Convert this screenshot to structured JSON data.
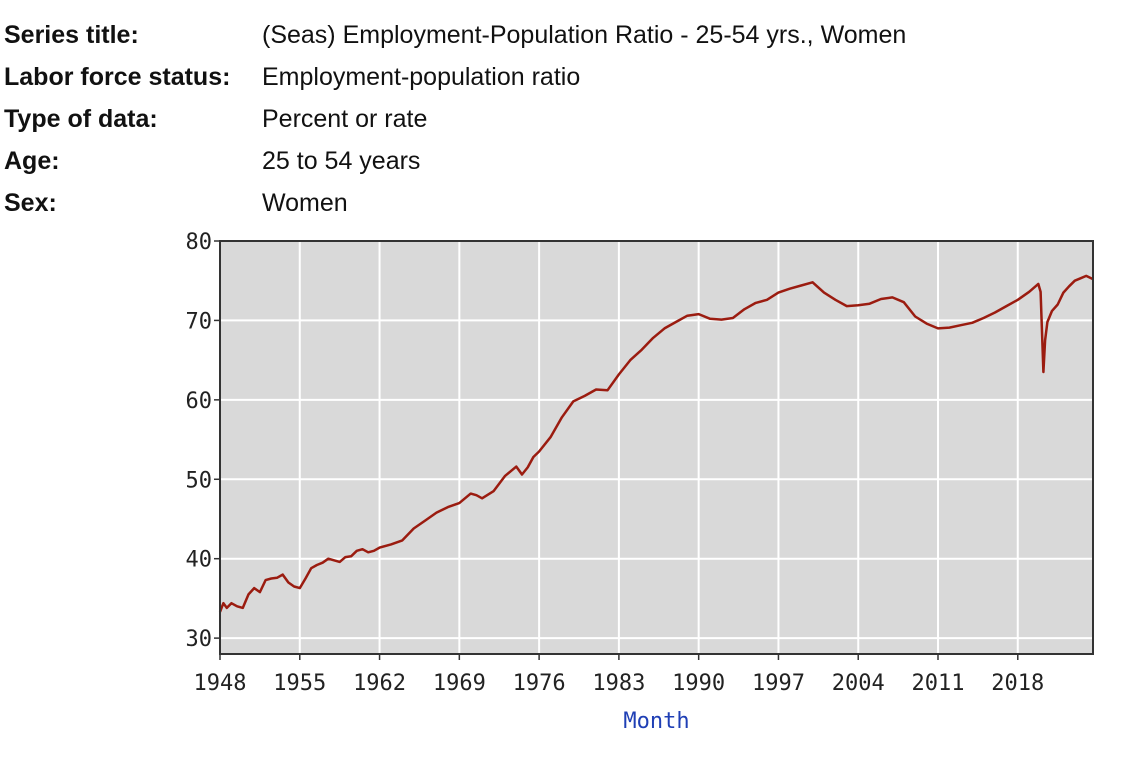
{
  "metadata": [
    {
      "label": "Series title:",
      "value": "(Seas) Employment-Population Ratio - 25-54 yrs., Women"
    },
    {
      "label": "Labor force status:",
      "value": "Employment-population ratio"
    },
    {
      "label": "Type of data:",
      "value": "Percent or rate"
    },
    {
      "label": "Age:",
      "value": "25 to 54 years"
    },
    {
      "label": "Sex:",
      "value": "Women"
    }
  ],
  "colors": {
    "line": "#9b1c10",
    "plot_bg": "#d9d9d9",
    "grid": "#ffffff",
    "axis_label": "#1f3fb5"
  },
  "chart_data": {
    "type": "line",
    "title": "",
    "xlabel": "Month",
    "ylabel": "",
    "xlim": [
      1948,
      2024.6
    ],
    "ylim": [
      28,
      80
    ],
    "grid": true,
    "legend": "none",
    "x_ticks": [
      1948,
      1955,
      1962,
      1969,
      1976,
      1983,
      1990,
      1997,
      2004,
      2011,
      2018
    ],
    "y_ticks": [
      30,
      40,
      50,
      60,
      70,
      80
    ],
    "series": [
      {
        "x": [
          1948.0,
          1948.3,
          1948.6,
          1949.0,
          1949.5,
          1950.0,
          1950.5,
          1951.0,
          1951.5,
          1952.0,
          1952.5,
          1953.0,
          1953.5,
          1954.0,
          1954.5,
          1955.0,
          1955.5,
          1956.0,
          1956.5,
          1957.0,
          1957.5,
          1958.0,
          1958.5,
          1959.0,
          1959.5,
          1960.0,
          1960.5,
          1961.0,
          1961.5,
          1962.0,
          1963.0,
          1964.0,
          1965.0,
          1966.0,
          1967.0,
          1968.0,
          1969.0,
          1970.0,
          1970.5,
          1971.0,
          1972.0,
          1973.0,
          1974.0,
          1974.5,
          1975.0,
          1975.5,
          1976.0,
          1977.0,
          1978.0,
          1979.0,
          1980.0,
          1981.0,
          1982.0,
          1983.0,
          1984.0,
          1985.0,
          1986.0,
          1987.0,
          1988.0,
          1989.0,
          1990.0,
          1991.0,
          1992.0,
          1993.0,
          1994.0,
          1995.0,
          1996.0,
          1997.0,
          1998.0,
          1999.0,
          2000.0,
          2001.0,
          2002.0,
          2003.0,
          2004.0,
          2005.0,
          2006.0,
          2007.0,
          2008.0,
          2009.0,
          2010.0,
          2011.0,
          2012.0,
          2013.0,
          2014.0,
          2015.0,
          2016.0,
          2017.0,
          2018.0,
          2019.0,
          2019.8,
          2020.0,
          2020.25,
          2020.4,
          2020.6,
          2021.0,
          2021.5,
          2022.0,
          2022.5,
          2023.0,
          2023.5,
          2024.0,
          2024.6
        ],
        "values": [
          33.3,
          34.4,
          33.8,
          34.4,
          34.0,
          33.8,
          35.5,
          36.3,
          35.8,
          37.3,
          37.5,
          37.6,
          38.0,
          37.0,
          36.5,
          36.3,
          37.5,
          38.8,
          39.2,
          39.5,
          40.0,
          39.8,
          39.6,
          40.2,
          40.3,
          41.0,
          41.2,
          40.8,
          41.0,
          41.4,
          41.8,
          42.3,
          43.8,
          44.8,
          45.8,
          46.5,
          47.0,
          48.2,
          48.0,
          47.6,
          48.5,
          50.4,
          51.6,
          50.6,
          51.5,
          52.8,
          53.5,
          55.3,
          57.8,
          59.8,
          60.5,
          61.3,
          61.2,
          63.2,
          65.0,
          66.3,
          67.8,
          69.0,
          69.8,
          70.6,
          70.8,
          70.2,
          70.1,
          70.3,
          71.4,
          72.2,
          72.6,
          73.5,
          74.0,
          74.4,
          74.8,
          73.5,
          72.6,
          71.8,
          71.9,
          72.1,
          72.7,
          72.9,
          72.3,
          70.5,
          69.6,
          69.0,
          69.1,
          69.4,
          69.7,
          70.3,
          71.0,
          71.8,
          72.6,
          73.6,
          74.6,
          73.6,
          63.5,
          67.5,
          69.8,
          71.2,
          72.0,
          73.5,
          74.3,
          75.0,
          75.3,
          75.6,
          75.2
        ]
      }
    ]
  }
}
